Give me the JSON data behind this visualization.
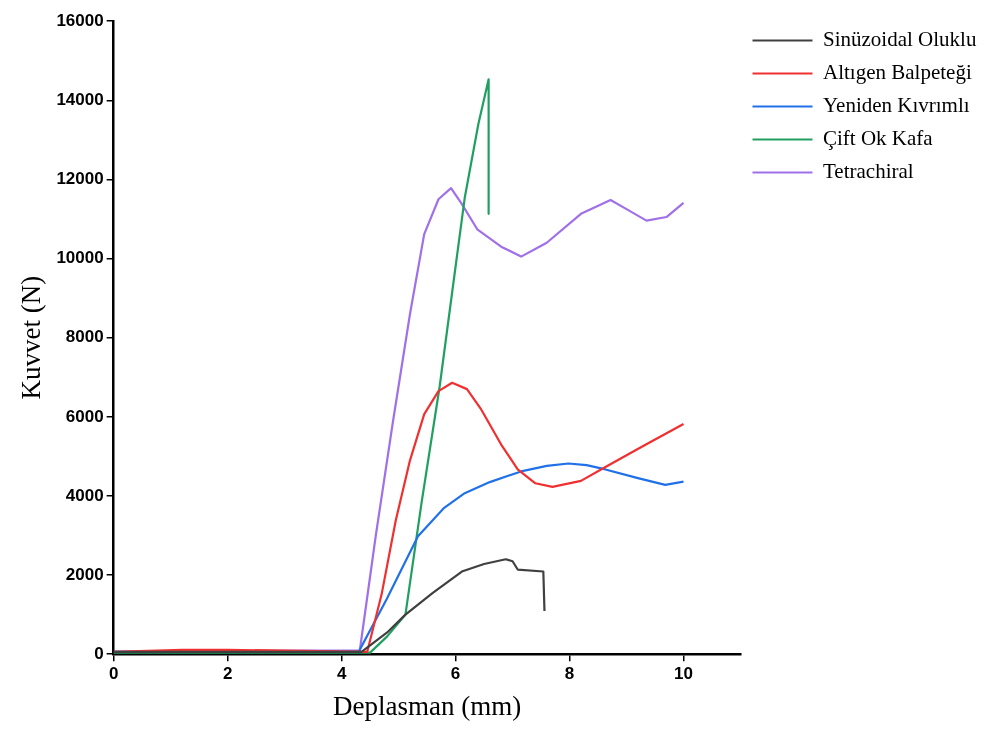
{
  "chart_data": {
    "type": "line",
    "xlabel": "Deplasman (mm)",
    "ylabel": "Kuvvet (N)",
    "xlim": [
      0,
      11
    ],
    "xticks": [
      0,
      2,
      4,
      6,
      8,
      10
    ],
    "ylim": [
      0,
      16000
    ],
    "yticks": [
      0,
      2000,
      4000,
      6000,
      8000,
      10000,
      12000,
      14000,
      16000
    ],
    "grid": false,
    "legend": "top right",
    "marker": "none",
    "line_style": "solid",
    "series": [
      {
        "name": "Sinüzoidal Oluklu",
        "color": "#404040",
        "x": [
          0,
          4.35,
          4.8,
          5.12,
          5.6,
          6.11,
          6.5,
          6.88,
          7.0,
          7.09,
          7.54,
          7.56
        ],
        "values": [
          60,
          60,
          550,
          1000,
          1550,
          2090,
          2280,
          2400,
          2350,
          2140,
          2090,
          1090
        ]
      },
      {
        "name": "Altıgen Balpeteği",
        "color": "#f03030",
        "x": [
          0,
          1.2,
          2.0,
          4.45,
          4.7,
          4.95,
          5.2,
          5.45,
          5.7,
          5.94,
          6.2,
          6.44,
          6.8,
          7.09,
          7.4,
          7.7,
          8.2,
          8.63,
          9.3,
          10
        ],
        "values": [
          60,
          110,
          110,
          60,
          1500,
          3380,
          4900,
          6070,
          6650,
          6860,
          6700,
          6210,
          5300,
          4670,
          4320,
          4230,
          4380,
          4730,
          5270,
          5820
        ]
      },
      {
        "name": "Yeniden Kıvrımlı",
        "color": "#2070e8",
        "x": [
          0,
          4.3,
          4.79,
          5.34,
          5.8,
          6.16,
          6.6,
          7.15,
          7.6,
          7.98,
          8.3,
          8.63,
          9.2,
          9.68,
          10
        ],
        "values": [
          60,
          60,
          1390,
          2980,
          3700,
          4070,
          4350,
          4620,
          4760,
          4820,
          4780,
          4670,
          4450,
          4280,
          4360
        ]
      },
      {
        "name": "Çift Ok Kafa",
        "color": "#20a060",
        "x": [
          0,
          4.5,
          4.8,
          5.12,
          5.4,
          5.72,
          6.0,
          6.16,
          6.4,
          6.58,
          6.58
        ],
        "values": [
          40,
          40,
          450,
          1000,
          3800,
          6760,
          9800,
          11530,
          13400,
          14530,
          11130
        ]
      },
      {
        "name": "Tetrachiral",
        "color": "#a070e8",
        "x": [
          0,
          4.32,
          4.6,
          4.9,
          5.2,
          5.45,
          5.7,
          5.92,
          6.1,
          6.38,
          6.8,
          7.15,
          7.6,
          8.2,
          8.72,
          9.0,
          9.35,
          9.7,
          10
        ],
        "values": [
          60,
          100,
          3000,
          5870,
          8600,
          10620,
          11500,
          11780,
          11400,
          10740,
          10300,
          10050,
          10400,
          11130,
          11480,
          11250,
          10960,
          11050,
          11410
        ]
      }
    ]
  }
}
